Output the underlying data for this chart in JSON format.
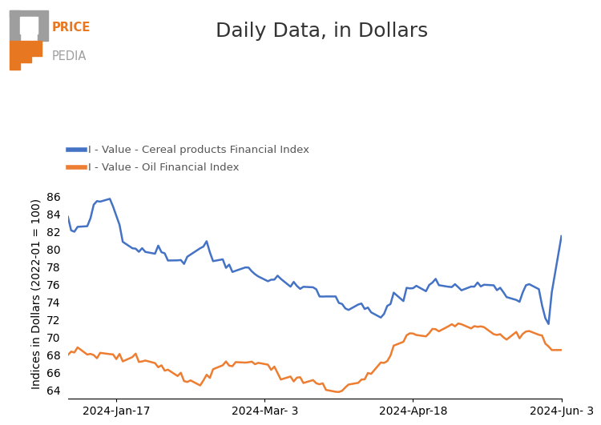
{
  "title": "Daily Data, in Dollars",
  "ylabel": "Indices in Dollars (2022-01 = 100)",
  "cereal_label": "I - Value - Cereal products Financial Index",
  "oil_label": "I - Value - Oil Financial Index",
  "cereal_color": "#4472C4",
  "oil_color": "#ED7D31",
  "ylim": [
    63,
    87
  ],
  "yticks": [
    64,
    66,
    68,
    70,
    72,
    74,
    76,
    78,
    80,
    82,
    84,
    86
  ],
  "xtick_labels": [
    "2024-Jan-17",
    "2024-Mar- 3",
    "2024-Apr-18",
    "2024-Jun- 3"
  ],
  "background_color": "#ffffff",
  "logo_color_orange": "#E87722",
  "logo_color_gray": "#9E9E9E",
  "title_fontsize": 18,
  "label_fontsize": 10,
  "tick_fontsize": 10,
  "line_width": 1.8
}
